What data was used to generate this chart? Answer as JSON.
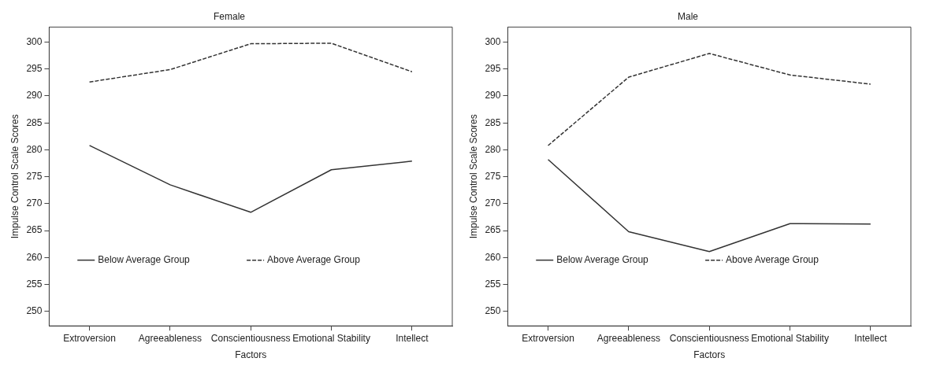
{
  "chart_data": [
    {
      "type": "line",
      "title": "Female",
      "xlabel": "Factors",
      "ylabel": "Impulse Control Scale Scores",
      "categories": [
        "Extroversion",
        "Agreeableness",
        "Conscientiousness",
        "Emotional Stability",
        "Intellect"
      ],
      "ylim": [
        247.3,
        302.8
      ],
      "yticks": [
        250,
        255,
        260,
        265,
        270,
        275,
        280,
        285,
        290,
        295,
        300
      ],
      "grid": false,
      "legend": "bottom",
      "marker": "none",
      "series": [
        {
          "name": "Below Average Group",
          "color": "#333333",
          "line_style": "solid",
          "values": [
            280.8,
            273.5,
            268.4,
            276.3,
            277.9
          ]
        },
        {
          "name": "Above Average Group",
          "color": "#333333",
          "line_style": "dashed",
          "values": [
            292.6,
            294.9,
            299.7,
            299.8,
            294.5
          ]
        }
      ]
    },
    {
      "type": "line",
      "title": "Male",
      "xlabel": "Factors",
      "ylabel": "Impulse Control Scale Scores",
      "categories": [
        "Extroversion",
        "Agreeableness",
        "Conscientiousness",
        "Emotional Stability",
        "Intellect"
      ],
      "ylim": [
        247.3,
        302.8
      ],
      "yticks": [
        250,
        255,
        260,
        265,
        270,
        275,
        280,
        285,
        290,
        295,
        300
      ],
      "grid": false,
      "legend": "bottom",
      "marker": "none",
      "series": [
        {
          "name": "Below Average Group",
          "color": "#333333",
          "line_style": "solid",
          "values": [
            278.2,
            264.8,
            261.1,
            266.3,
            266.2
          ]
        },
        {
          "name": "Above Average Group",
          "color": "#333333",
          "line_style": "dashed",
          "values": [
            280.8,
            293.5,
            297.9,
            293.9,
            292.2
          ]
        }
      ]
    }
  ]
}
